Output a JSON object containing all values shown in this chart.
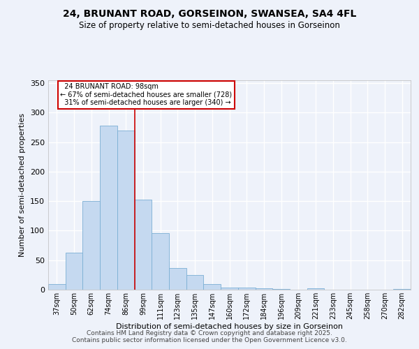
{
  "title1": "24, BRUNANT ROAD, GORSEINON, SWANSEA, SA4 4FL",
  "title2": "Size of property relative to semi-detached houses in Gorseinon",
  "xlabel": "Distribution of semi-detached houses by size in Gorseinon",
  "ylabel": "Number of semi-detached properties",
  "bar_labels": [
    "37sqm",
    "50sqm",
    "62sqm",
    "74sqm",
    "86sqm",
    "99sqm",
    "111sqm",
    "123sqm",
    "135sqm",
    "147sqm",
    "160sqm",
    "172sqm",
    "184sqm",
    "196sqm",
    "209sqm",
    "221sqm",
    "233sqm",
    "245sqm",
    "258sqm",
    "270sqm",
    "282sqm"
  ],
  "bar_heights": [
    10,
    63,
    150,
    278,
    270,
    153,
    96,
    37,
    25,
    9,
    4,
    3,
    2,
    1,
    0,
    2,
    0,
    0,
    0,
    0,
    1
  ],
  "bar_color": "#c5d9f0",
  "bar_edge_color": "#7bafd4",
  "property_label": "24 BRUNANT ROAD: 98sqm",
  "smaller_pct": 67,
  "smaller_count": 728,
  "larger_pct": 31,
  "larger_count": 340,
  "vline_color": "#cc0000",
  "annotation_box_edge": "#cc0000",
  "ylim": [
    0,
    355
  ],
  "yticks": [
    0,
    50,
    100,
    150,
    200,
    250,
    300,
    350
  ],
  "footer1": "Contains HM Land Registry data © Crown copyright and database right 2025.",
  "footer2": "Contains public sector information licensed under the Open Government Licence v3.0.",
  "bg_color": "#eef2fa",
  "grid_color": "#ffffff"
}
